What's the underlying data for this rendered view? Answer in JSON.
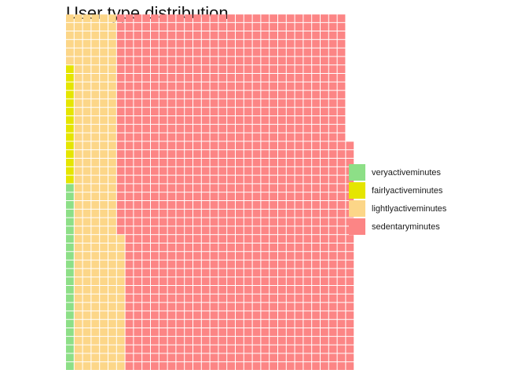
{
  "chart_data": {
    "type": "waffle",
    "title": "User type distribution",
    "xlabel": "",
    "ylabel": "",
    "grid": false,
    "legend_position": "right",
    "rows": 42,
    "fill_order": "bottom-to-top, left-to-right",
    "series": [
      {
        "name": "veryactiveminutes",
        "squares": 22,
        "color": "#8ddf87"
      },
      {
        "name": "fairlyactiveminutes",
        "squares": 14,
        "color": "#e5e500"
      },
      {
        "name": "lightlyactiveminutes",
        "squares": 232,
        "color": "#fcd688"
      },
      {
        "name": "sedentaryminutes",
        "squares": 1145,
        "color": "#fc8585"
      }
    ]
  }
}
